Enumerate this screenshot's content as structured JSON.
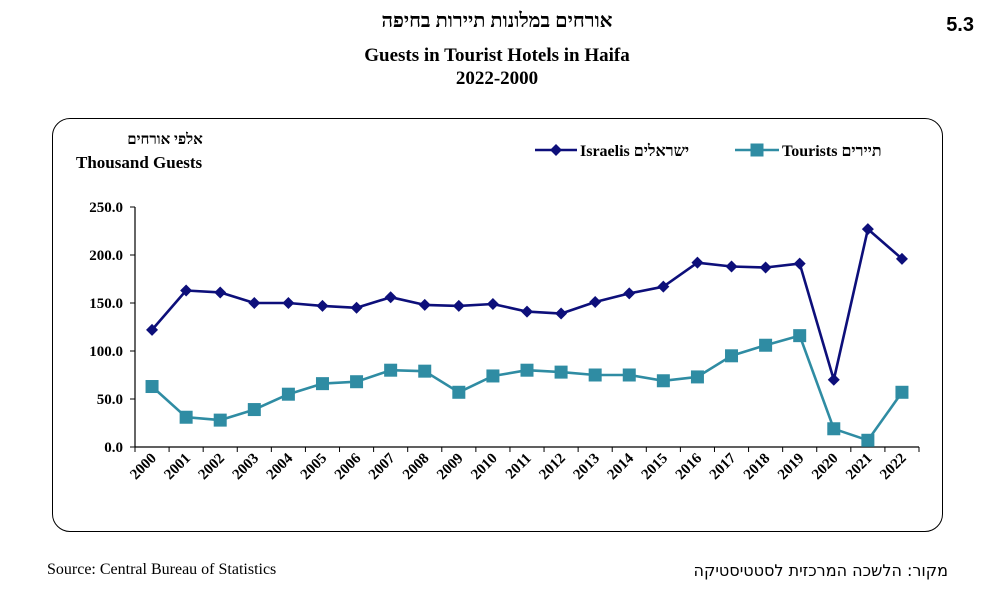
{
  "header": {
    "chart_number": "5.3",
    "title_he": "אורחים במלונות תיירות בחיפה",
    "title_en": "Guests in Tourist Hotels in Haifa",
    "years": "2022-2000"
  },
  "unit": {
    "he": "אלפי אורחים",
    "en": "Thousand Guests"
  },
  "footer": {
    "source_en": "Source: Central Bureau of Statistics",
    "source_he": "מקור: הלשכה המרכזית לסטטיסטיקה"
  },
  "chart_data": {
    "type": "line",
    "x": [
      "2000",
      "2001",
      "2002",
      "2003",
      "2004",
      "2005",
      "2006",
      "2007",
      "2008",
      "2009",
      "2010",
      "2011",
      "2012",
      "2013",
      "2014",
      "2015",
      "2016",
      "2017",
      "2018",
      "2019",
      "2020",
      "2021",
      "2022"
    ],
    "series": [
      {
        "name": "Israelis ישראלים",
        "color": "#0d0f7a",
        "marker": "diamond",
        "values": [
          122,
          163,
          161,
          150,
          150,
          147,
          145,
          156,
          148,
          147,
          149,
          141,
          139,
          151,
          160,
          167,
          192,
          188,
          187,
          191,
          70,
          227,
          196
        ]
      },
      {
        "name": "Tourists תיירים",
        "color": "#2f8ca3",
        "marker": "square",
        "values": [
          63,
          31,
          28,
          39,
          55,
          66,
          68,
          80,
          79,
          57,
          74,
          80,
          78,
          75,
          75,
          69,
          73,
          95,
          106,
          116,
          19,
          7,
          57
        ]
      }
    ],
    "yticks": [
      "0.0",
      "50.0",
      "100.0",
      "150.0",
      "200.0",
      "250.0"
    ],
    "ylim": [
      0,
      250
    ],
    "legend_position": "top-right",
    "grid": false
  }
}
